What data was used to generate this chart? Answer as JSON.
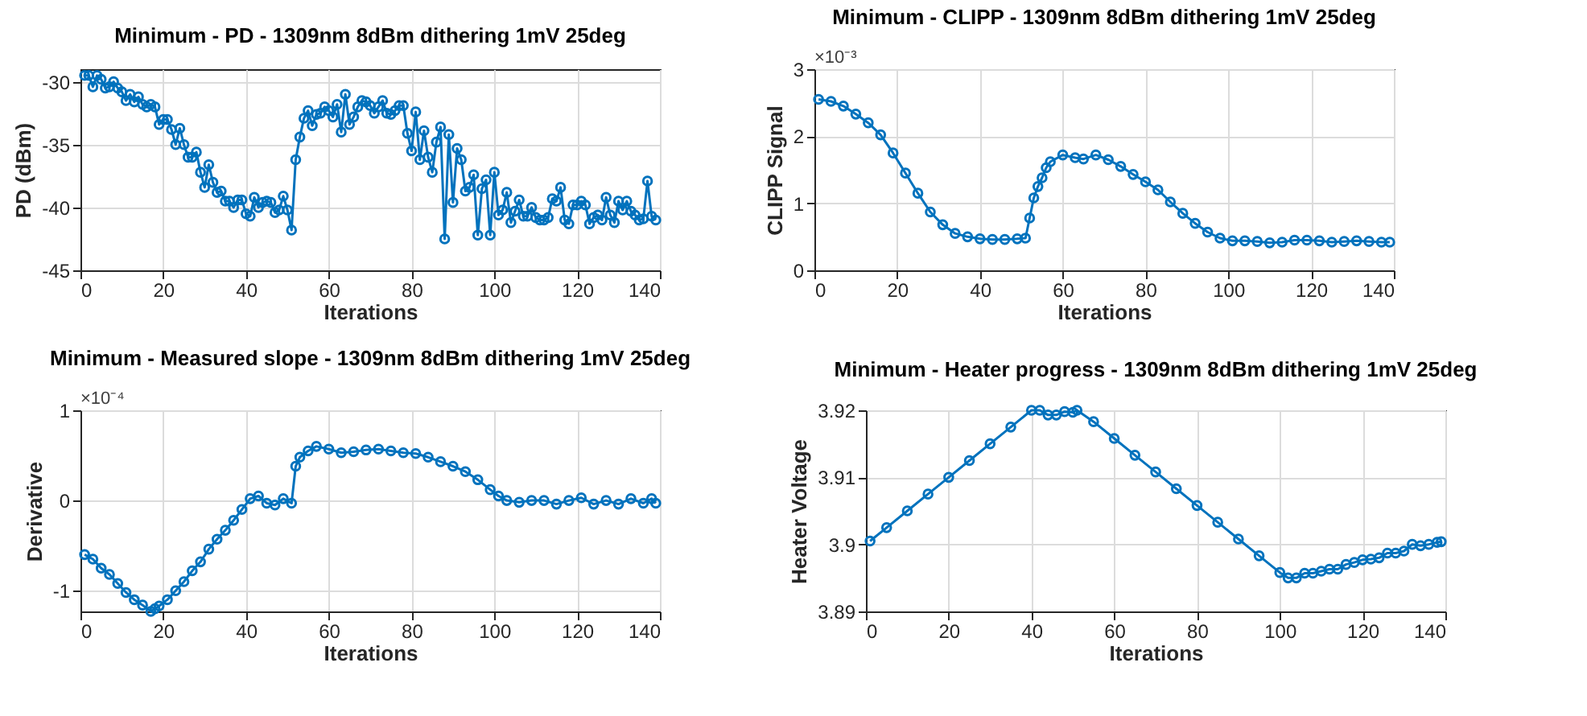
{
  "chart_data": [
    {
      "type": "line",
      "title": "Minimum - PD - 1309nm 8dBm dithering 1mV 25deg",
      "xlabel": "Iterations",
      "ylabel": "PD (dBm)",
      "xlim": [
        0,
        140
      ],
      "xticks": [
        0,
        20,
        40,
        60,
        80,
        100,
        120,
        140
      ],
      "ylim": [
        -45,
        -29
      ],
      "yticks": [
        -45,
        -40,
        -35,
        -30
      ],
      "grid": true,
      "marker": "circle",
      "line_style": "solid",
      "series": [
        {
          "color": "#0072bd",
          "x": [
            1,
            2,
            3,
            4,
            5,
            6,
            7,
            8,
            9,
            10,
            11,
            12,
            13,
            14,
            15,
            16,
            17,
            18,
            19,
            20,
            21,
            22,
            23,
            24,
            25,
            26,
            27,
            28,
            29,
            30,
            31,
            32,
            33,
            34,
            35,
            36,
            37,
            38,
            39,
            40,
            41,
            42,
            43,
            44,
            45,
            46,
            47,
            48,
            49,
            50,
            51,
            52,
            53,
            54,
            55,
            56,
            57,
            58,
            59,
            60,
            61,
            62,
            63,
            64,
            65,
            66,
            67,
            68,
            69,
            70,
            71,
            72,
            73,
            74,
            75,
            76,
            77,
            78,
            79,
            80,
            81,
            82,
            83,
            84,
            85,
            86,
            87,
            88,
            89,
            90,
            91,
            92,
            93,
            94,
            95,
            96,
            97,
            98,
            99,
            100,
            101,
            102,
            103,
            104,
            105,
            106,
            107,
            108,
            109,
            110,
            111,
            112,
            113,
            114,
            115,
            116,
            117,
            118,
            119,
            120,
            121,
            122,
            123,
            124,
            125,
            126,
            127,
            128,
            129,
            130,
            131,
            132,
            133,
            134,
            135,
            136,
            137,
            138,
            139
          ],
          "values": [
            -29.5,
            -29.5,
            -30.4,
            -29.5,
            -29.8,
            -30.5,
            -30.4,
            -30.0,
            -30.5,
            -30.8,
            -31.5,
            -31.0,
            -31.6,
            -31.2,
            -31.8,
            -32.0,
            -31.8,
            -32.0,
            -33.4,
            -33.0,
            -33.0,
            -33.8,
            -35.0,
            -33.7,
            -35.0,
            -36.0,
            -36.0,
            -35.6,
            -37.2,
            -38.4,
            -36.6,
            -38.0,
            -38.8,
            -38.7,
            -39.5,
            -39.5,
            -40.0,
            -39.4,
            -39.4,
            -40.5,
            -40.7,
            -39.2,
            -40.0,
            -39.6,
            -39.5,
            -39.6,
            -40.4,
            -40.2,
            -39.1,
            -40.2,
            -41.8,
            -36.2,
            -34.4,
            -32.9,
            -32.3,
            -33.5,
            -32.6,
            -32.5,
            -32.0,
            -32.3,
            -32.8,
            -31.8,
            -34.0,
            -31.0,
            -33.4,
            -32.8,
            -32.0,
            -31.5,
            -31.6,
            -31.9,
            -32.5,
            -32.0,
            -31.5,
            -32.5,
            -32.6,
            -32.3,
            -31.9,
            -31.9,
            -34.1,
            -35.5,
            -32.4,
            -36.2,
            -33.9,
            -36.0,
            -37.2,
            -34.8,
            -33.6,
            -42.5,
            -34.2,
            -39.6,
            -35.3,
            -36.2,
            -38.7,
            -38.4,
            -37.4,
            -42.2,
            -38.5,
            -37.8,
            -42.2,
            -37.2,
            -40.6,
            -40.2,
            -38.8,
            -41.2,
            -40.3,
            -39.4,
            -40.7,
            -40.7,
            -40.0,
            -40.8,
            -41.0,
            -41.0,
            -40.8,
            -39.3,
            -39.5,
            -38.4,
            -41.0,
            -41.3,
            -39.8,
            -39.8,
            -39.5,
            -39.8,
            -41.3,
            -40.8,
            -40.6,
            -41.0,
            -39.2,
            -40.6,
            -41.2,
            -39.5,
            -40.2,
            -39.5,
            -40.3,
            -40.6,
            -41.0,
            -40.9,
            -37.9,
            -40.7,
            -41.0
          ]
        }
      ]
    },
    {
      "type": "line",
      "title": "Minimum - CLIPP - 1309nm 8dBm dithering 1mV 25deg",
      "xlabel": "Iterations",
      "ylabel": "CLIPP Signal",
      "annotations": [
        "×10⁻³"
      ],
      "xlim": [
        0,
        140
      ],
      "xticks": [
        0,
        20,
        40,
        60,
        80,
        100,
        120,
        140
      ],
      "ylim": [
        0,
        3
      ],
      "yticks": [
        0,
        1,
        2,
        3
      ],
      "grid": true,
      "marker": "circle",
      "line_style": "solid",
      "series": [
        {
          "color": "#0072bd",
          "x": [
            1,
            4,
            7,
            10,
            13,
            16,
            19,
            22,
            25,
            28,
            31,
            34,
            37,
            40,
            43,
            46,
            49,
            51,
            52,
            53,
            54,
            55,
            56,
            57,
            60,
            63,
            65,
            68,
            71,
            74,
            77,
            80,
            83,
            86,
            89,
            92,
            95,
            98,
            101,
            104,
            107,
            110,
            113,
            116,
            119,
            122,
            125,
            128,
            131,
            134,
            137,
            139
          ],
          "values": [
            2.55,
            2.52,
            2.45,
            2.33,
            2.2,
            2.02,
            1.75,
            1.45,
            1.15,
            0.87,
            0.68,
            0.55,
            0.5,
            0.47,
            0.46,
            0.46,
            0.47,
            0.48,
            0.78,
            1.08,
            1.25,
            1.38,
            1.53,
            1.62,
            1.72,
            1.68,
            1.66,
            1.72,
            1.65,
            1.55,
            1.43,
            1.32,
            1.2,
            1.02,
            0.85,
            0.7,
            0.57,
            0.48,
            0.44,
            0.44,
            0.43,
            0.41,
            0.42,
            0.45,
            0.45,
            0.44,
            0.42,
            0.43,
            0.44,
            0.43,
            0.42,
            0.42
          ]
        }
      ]
    },
    {
      "type": "line",
      "title": "Minimum - Measured slope - 1309nm 8dBm dithering 1mV 25deg",
      "xlabel": "Iterations",
      "ylabel": "Derivative",
      "annotations": [
        "×10⁻⁴"
      ],
      "xlim": [
        0,
        140
      ],
      "xticks": [
        0,
        20,
        40,
        60,
        80,
        100,
        120,
        140
      ],
      "ylim": [
        -1.23,
        1
      ],
      "yticks": [
        -1,
        0,
        1
      ],
      "grid": true,
      "marker": "circle",
      "line_style": "solid",
      "series": [
        {
          "color": "#0072bd",
          "x": [
            1,
            3,
            5,
            7,
            9,
            11,
            13,
            15,
            17,
            18,
            19,
            21,
            23,
            25,
            27,
            29,
            31,
            33,
            35,
            37,
            39,
            41,
            43,
            45,
            47,
            49,
            51,
            52,
            53,
            55,
            57,
            60,
            63,
            66,
            69,
            72,
            75,
            78,
            81,
            84,
            87,
            90,
            93,
            96,
            99,
            101,
            103,
            106,
            109,
            112,
            115,
            118,
            121,
            124,
            127,
            130,
            133,
            136,
            138,
            139
          ],
          "values": [
            -0.6,
            -0.65,
            -0.75,
            -0.82,
            -0.92,
            -1.02,
            -1.1,
            -1.16,
            -1.23,
            -1.2,
            -1.17,
            -1.1,
            -1.0,
            -0.9,
            -0.78,
            -0.68,
            -0.54,
            -0.43,
            -0.33,
            -0.22,
            -0.1,
            0.02,
            0.05,
            -0.03,
            -0.05,
            0.02,
            -0.03,
            0.38,
            0.48,
            0.55,
            0.6,
            0.57,
            0.53,
            0.54,
            0.56,
            0.57,
            0.55,
            0.53,
            0.52,
            0.48,
            0.43,
            0.38,
            0.32,
            0.23,
            0.12,
            0.05,
            0.0,
            -0.02,
            0.0,
            0.0,
            -0.04,
            0.0,
            0.03,
            -0.04,
            0.0,
            -0.04,
            0.02,
            -0.03,
            0.02,
            -0.03
          ]
        }
      ]
    },
    {
      "type": "line",
      "title": "Minimum - Heater progress - 1309nm 8dBm dithering 1mV 25deg",
      "xlabel": "Iterations",
      "ylabel": "Heater Voltage",
      "xlim": [
        0,
        140
      ],
      "xticks": [
        0,
        20,
        40,
        60,
        80,
        100,
        120,
        140
      ],
      "ylim": [
        3.89,
        3.92
      ],
      "yticks": [
        3.89,
        {
          "value": 3.9,
          "label": "3.9"
        },
        3.91,
        3.92
      ],
      "grid": true,
      "marker": "circle",
      "line_style": "solid",
      "series": [
        {
          "color": "#0072bd",
          "x": [
            1,
            5,
            10,
            15,
            20,
            25,
            30,
            35,
            40,
            42,
            44,
            46,
            48,
            50,
            51,
            55,
            60,
            65,
            70,
            75,
            80,
            85,
            90,
            95,
            100,
            102,
            104,
            106,
            108,
            110,
            112,
            114,
            116,
            118,
            120,
            122,
            124,
            126,
            128,
            130,
            132,
            134,
            136,
            138,
            139
          ],
          "values": [
            3.9005,
            3.9025,
            3.905,
            3.9075,
            3.91,
            3.9125,
            3.915,
            3.9175,
            3.92,
            3.92,
            3.9193,
            3.9193,
            3.9198,
            3.9197,
            3.92,
            3.9183,
            3.9158,
            3.9133,
            3.9108,
            3.9083,
            3.9058,
            3.9033,
            3.9008,
            3.8983,
            3.8958,
            3.895,
            3.895,
            3.8957,
            3.8957,
            3.896,
            3.8963,
            3.8963,
            3.897,
            3.8973,
            3.8977,
            3.8978,
            3.898,
            3.8987,
            3.8987,
            3.899,
            3.9,
            3.8998,
            3.9,
            3.9003,
            3.9004
          ]
        }
      ]
    }
  ]
}
